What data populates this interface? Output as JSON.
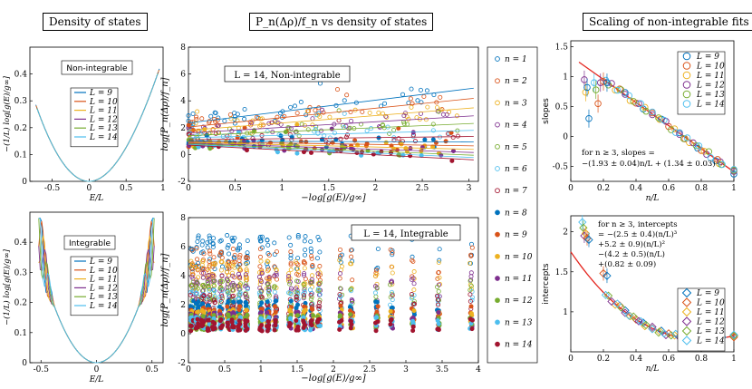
{
  "panel_titles": {
    "left": "Density of states",
    "middle": "P_n(Δρ)/f_n vs density of states",
    "right": "Scaling of non-integrable fits"
  },
  "colors": {
    "palette": [
      "#0072bd",
      "#d95319",
      "#edb120",
      "#7e2f8e",
      "#77ac30",
      "#4dbeee",
      "#a2142f"
    ],
    "fit": "#e4261f"
  },
  "chart_data": [
    {
      "id": "dos-nonint",
      "type": "line",
      "title": "Non-integrable",
      "xlabel": "E/L",
      "ylabel": "−(1/L) log[g(E)/g∞]",
      "xlim": [
        -0.8,
        1.0
      ],
      "ylim": [
        0,
        0.5
      ],
      "xticks": [
        "-0.5",
        "0",
        "0.5",
        "1"
      ],
      "yticks": [
        "0",
        "0.1",
        "0.2",
        "0.3",
        "0.4"
      ],
      "legend": [
        "L = 9",
        "L = 10",
        "L = 11",
        "L = 12",
        "L = 13",
        "L = 14"
      ],
      "series_model": {
        "edge_min": -0.72,
        "edge_max": 0.95,
        "curvature": 0.62
      }
    },
    {
      "id": "dos-int",
      "type": "line",
      "title": "Integrable",
      "xlabel": "E/L",
      "ylabel": "−(1/L) log[g(E)/g∞]",
      "xlim": [
        -0.6,
        0.6
      ],
      "ylim": [
        0,
        0.5
      ],
      "xticks": [
        "-0.5",
        "0",
        "0.5"
      ],
      "yticks": [
        "0",
        "0.1",
        "0.2",
        "0.3",
        "0.4"
      ],
      "legend": [
        "L = 9",
        "L = 10",
        "L = 11",
        "L = 12",
        "L = 13",
        "L = 14"
      ]
    },
    {
      "id": "pn-nonint",
      "type": "scatter",
      "title": "L = 14, Non-integrable",
      "xlabel": "−log[g(E)/g∞]",
      "ylabel": "log[P_n(Δρ)/f_n]",
      "xlim": [
        0,
        3.1
      ],
      "ylim": [
        -2,
        8
      ],
      "xticks": [
        "0",
        "0.5",
        "1",
        "1.5",
        "2",
        "2.5",
        "3"
      ],
      "yticks": [
        "-2",
        "0",
        "2",
        "4",
        "6",
        "8"
      ],
      "fit_lines": [
        {
          "n": 1,
          "intercept": 2.35,
          "slope": 0.85
        },
        {
          "n": 2,
          "intercept": 2.05,
          "slope": 0.7
        },
        {
          "n": 3,
          "intercept": 1.8,
          "slope": 0.55
        },
        {
          "n": 4,
          "intercept": 1.6,
          "slope": 0.42
        },
        {
          "n": 5,
          "intercept": 1.4,
          "slope": 0.3
        },
        {
          "n": 6,
          "intercept": 1.25,
          "slope": 0.18
        },
        {
          "n": 7,
          "intercept": 1.1,
          "slope": 0.08
        },
        {
          "n": 8,
          "intercept": 1.0,
          "slope": -0.02
        },
        {
          "n": 9,
          "intercept": 0.95,
          "slope": -0.1
        },
        {
          "n": 10,
          "intercept": 0.9,
          "slope": -0.17
        },
        {
          "n": 11,
          "intercept": 0.85,
          "slope": -0.23
        },
        {
          "n": 12,
          "intercept": 0.8,
          "slope": -0.28
        },
        {
          "n": 13,
          "intercept": 0.75,
          "slope": -0.32
        },
        {
          "n": 14,
          "intercept": 0.7,
          "slope": -0.36
        }
      ]
    },
    {
      "id": "pn-int",
      "type": "scatter",
      "title": "L = 14, Integrable",
      "xlabel": "−log[g(E)/g∞]",
      "ylabel": "log[P_n(Δρ)/f_n]",
      "xlim": [
        0,
        4
      ],
      "ylim": [
        -2,
        8
      ],
      "xticks": [
        "0",
        "0.5",
        "1",
        "1.5",
        "2",
        "2.5",
        "3",
        "3.5",
        "4"
      ],
      "yticks": [
        "-2",
        "0",
        "2",
        "4",
        "6",
        "8"
      ],
      "cluster_x": [
        0.05,
        0.12,
        0.2,
        0.28,
        0.35,
        0.45,
        0.55,
        0.62,
        0.7,
        0.8,
        1.0,
        1.1,
        1.2,
        1.4,
        1.5,
        1.6,
        1.7,
        1.8,
        2.1,
        2.25,
        2.6,
        2.8,
        3.1,
        3.45,
        3.9
      ],
      "levels": [
        5.6,
        4.8,
        4.0,
        3.2,
        2.7,
        2.2,
        1.9,
        1.5,
        1.2,
        1.0,
        0.9,
        0.8,
        0.7,
        0.6
      ]
    },
    {
      "id": "legend-n",
      "type": "legend",
      "entries": [
        "n = 1",
        "n = 2",
        "n = 3",
        "n = 4",
        "n = 5",
        "n = 6",
        "n = 7",
        "n = 8",
        "n = 9",
        "n = 10",
        "n = 11",
        "n = 12",
        "n = 13",
        "n = 14"
      ],
      "marker_style": [
        "open",
        "open",
        "open",
        "open",
        "open",
        "open",
        "open",
        "filled",
        "filled",
        "filled",
        "filled",
        "filled",
        "filled",
        "filled"
      ]
    },
    {
      "id": "slopes",
      "type": "scatter",
      "xlabel": "n/L",
      "ylabel": "slopes",
      "xlim": [
        0,
        1
      ],
      "ylim": [
        -0.75,
        1.6
      ],
      "xticks": [
        "0",
        "0.2",
        "0.4",
        "0.6",
        "0.8",
        "1"
      ],
      "yticks": [
        "-0.5",
        "0",
        "0.5",
        "1",
        "1.5"
      ],
      "legend": [
        "L = 9",
        "L = 10",
        "L = 11",
        "L = 12",
        "L = 13",
        "L = 14"
      ],
      "annotation": [
        "for n ≥ 3, slopes =",
        "−(1.93 ± 0.04)n/L + (1.34 ± 0.03)"
      ],
      "fit": {
        "slope": -1.93,
        "intercept": 1.34
      },
      "outliers": [
        {
          "x": 0.083,
          "y": 0.95,
          "L": 12
        },
        {
          "x": 0.091,
          "y": 0.74,
          "L": 11
        },
        {
          "x": 0.1,
          "y": 0.82,
          "L": 9
        },
        {
          "x": 0.111,
          "y": 0.3,
          "L": 9
        },
        {
          "x": 0.143,
          "y": 0.9,
          "L": 14
        },
        {
          "x": 0.154,
          "y": 0.78,
          "L": 13
        },
        {
          "x": 0.167,
          "y": 0.55,
          "L": 10
        },
        {
          "x": 0.182,
          "y": 0.9,
          "L": 12
        },
        {
          "x": 0.2,
          "y": 0.92,
          "L": 10
        },
        {
          "x": 0.222,
          "y": 0.9,
          "L": 9
        }
      ]
    },
    {
      "id": "intercepts",
      "type": "scatter",
      "xlabel": "n/L",
      "ylabel": "intercepts",
      "xlim": [
        0,
        1
      ],
      "ylim": [
        0.5,
        2.2
      ],
      "xticks": [
        "0",
        "0.2",
        "0.4",
        "0.6",
        "0.8",
        "1"
      ],
      "yticks": [
        "1",
        "1.5",
        "2"
      ],
      "legend": [
        "L = 9",
        "L = 10",
        "L = 11",
        "L = 12",
        "L = 13",
        "L = 14"
      ],
      "annotation": [
        "for n ≥ 3, intercepts",
        "= −(2.5 ± 0.4)(n/L)³",
        "+5.2 ± 0.9)(n/L)²",
        "−(4.2 ± 0.5)(n/L)",
        "+(0.82 ± 0.09)"
      ],
      "fit": {
        "a3": -2.5,
        "a2": 5.2,
        "a1": -4.2,
        "a0": 0.82
      },
      "outliers": [
        {
          "x": 0.071,
          "y": 2.12,
          "L": 14
        },
        {
          "x": 0.077,
          "y": 2.05,
          "L": 13
        },
        {
          "x": 0.083,
          "y": 1.95,
          "L": 12
        },
        {
          "x": 0.091,
          "y": 1.98,
          "L": 11
        },
        {
          "x": 0.1,
          "y": 1.92,
          "L": 10
        },
        {
          "x": 0.111,
          "y": 1.9,
          "L": 9
        },
        {
          "x": 0.2,
          "y": 1.48,
          "L": 10
        },
        {
          "x": 0.222,
          "y": 1.45,
          "L": 9
        }
      ]
    }
  ]
}
